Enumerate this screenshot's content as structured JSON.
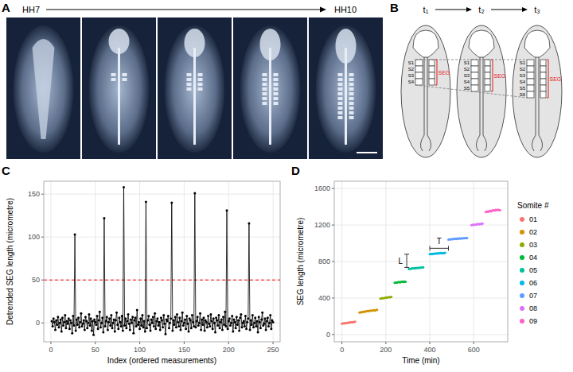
{
  "panel_a": {
    "panel": "A",
    "stages": [
      "HH7",
      "HH10"
    ]
  },
  "panel_b": {
    "panel": "B",
    "times": [
      "t₁",
      "t₂",
      "t₃"
    ],
    "somites": [
      [
        "S1",
        "S2",
        "S3",
        "S4"
      ],
      [
        "S1",
        "S2",
        "S3",
        "S4",
        "S5"
      ],
      [
        "S1",
        "S2",
        "S3",
        "S4",
        "S5",
        "S6"
      ]
    ],
    "segment_label": "SEG"
  },
  "chart_data": [
    {
      "panel": "C",
      "type": "line",
      "marker": "circle",
      "color": "#000000",
      "grid": true,
      "x_label": "Index (ordered measurements)",
      "y_label": "Detrended SEG length (micrometre)",
      "xlim": [
        -8,
        258
      ],
      "xticks": [
        0,
        50,
        100,
        150,
        200,
        250
      ],
      "ylim": [
        -22,
        165
      ],
      "yticks": [
        0,
        50,
        100,
        150
      ],
      "reference_line": {
        "value": 50,
        "color": "#ff0000",
        "line_style": "dashed"
      },
      "x": [
        1,
        2,
        3,
        4,
        5,
        6,
        7,
        8,
        9,
        10,
        11,
        12,
        13,
        14,
        15,
        16,
        17,
        18,
        19,
        20,
        21,
        22,
        23,
        24,
        25,
        26,
        27,
        28,
        29,
        30,
        31,
        32,
        33,
        34,
        35,
        36,
        37,
        38,
        39,
        40,
        41,
        42,
        43,
        44,
        45,
        46,
        47,
        48,
        49,
        50,
        51,
        52,
        53,
        54,
        55,
        56,
        57,
        58,
        59,
        60,
        61,
        62,
        63,
        64,
        65,
        66,
        67,
        68,
        69,
        70,
        71,
        72,
        73,
        74,
        75,
        76,
        77,
        78,
        79,
        80,
        81,
        82,
        83,
        84,
        85,
        86,
        87,
        88,
        89,
        90,
        91,
        92,
        93,
        94,
        95,
        96,
        97,
        98,
        99,
        100,
        101,
        102,
        103,
        104,
        105,
        106,
        107,
        108,
        109,
        110,
        111,
        112,
        113,
        114,
        115,
        116,
        117,
        118,
        119,
        120,
        121,
        122,
        123,
        124,
        125,
        126,
        127,
        128,
        129,
        130,
        131,
        132,
        133,
        134,
        135,
        136,
        137,
        138,
        139,
        140,
        141,
        142,
        143,
        144,
        145,
        146,
        147,
        148,
        149,
        150,
        151,
        152,
        153,
        154,
        155,
        156,
        157,
        158,
        159,
        160,
        161,
        162,
        163,
        164,
        165,
        166,
        167,
        168,
        169,
        170,
        171,
        172,
        173,
        174,
        175,
        176,
        177,
        178,
        179,
        180,
        181,
        182,
        183,
        184,
        185,
        186,
        187,
        188,
        189,
        190,
        191,
        192,
        193,
        194,
        195,
        196,
        197,
        198,
        199,
        200,
        201,
        202,
        203,
        204,
        205,
        206,
        207,
        208,
        209,
        210,
        211,
        212,
        213,
        214,
        215,
        216,
        217,
        218,
        219,
        220,
        221,
        222,
        223,
        224,
        225,
        226,
        227,
        228,
        229,
        230,
        231,
        232,
        233,
        234,
        235,
        236,
        237,
        238,
        239,
        240,
        241,
        242,
        243,
        244,
        245,
        246,
        247,
        248,
        249,
        250
      ],
      "values": [
        2,
        -4,
        5,
        1,
        -8,
        3,
        -2,
        7,
        -5,
        0,
        4,
        -10,
        6,
        -3,
        1,
        9,
        -6,
        2,
        -1,
        5,
        -7,
        3,
        0,
        -12,
        8,
        -3,
        103,
        -9,
        4,
        -2,
        6,
        -5,
        1,
        11,
        -4,
        -1,
        3,
        -8,
        7,
        2,
        -6,
        0,
        10,
        -3,
        5,
        -9,
        2,
        -14,
        4,
        1,
        -2,
        8,
        -7,
        3,
        13,
        -5,
        0,
        6,
        -11,
        122,
        -4,
        2,
        7,
        -8,
        1,
        5,
        -3,
        9,
        -6,
        0,
        4,
        -10,
        3,
        12,
        -2,
        -7,
        6,
        1,
        -4,
        8,
        -9,
        158,
        -3,
        5,
        -6,
        2,
        10,
        -1,
        -8,
        4,
        0,
        7,
        -12,
        3,
        6,
        -4,
        15,
        -2,
        1,
        -7,
        5,
        -3,
        9,
        -5,
        2,
        -10,
        141,
        -6,
        3,
        8,
        -2,
        -9,
        4,
        0,
        7,
        -4,
        11,
        -7,
        2,
        5,
        -3,
        1,
        -8,
        6,
        3,
        -5,
        9,
        -1,
        -13,
        4,
        2,
        8,
        -6,
        0,
        5,
        140,
        -9,
        3,
        -2,
        7,
        -5,
        10,
        1,
        -4,
        6,
        -8,
        2,
        12,
        -3,
        0,
        4,
        -7,
        8,
        -1,
        -10,
        5,
        3,
        -6,
        9,
        1,
        -4,
        151,
        -5,
        2,
        7,
        -3,
        0,
        11,
        -8,
        4,
        -2,
        6,
        -9,
        3,
        1,
        -5,
        8,
        -1,
        -4,
        10,
        2,
        -7,
        5,
        0,
        -11,
        6,
        3,
        -3,
        9,
        -6,
        1,
        4,
        -8,
        7,
        -2,
        13,
        -4,
        131,
        -7,
        2,
        5,
        -3,
        0,
        8,
        -10,
        4,
        1,
        -6,
        7,
        -2,
        3,
        -9,
        6,
        10,
        -5,
        0,
        2,
        -4,
        8,
        -7,
        1,
        5,
        116,
        -8,
        3,
        -2,
        9,
        -5,
        0,
        6,
        -4,
        2,
        -11,
        7,
        1,
        -6,
        4,
        12,
        -3,
        -1,
        5,
        -8,
        2,
        6,
        -4,
        0,
        9,
        -7,
        3,
        1
      ]
    },
    {
      "panel": "D",
      "type": "line",
      "marker": "circle",
      "grid": true,
      "legend": "right",
      "legend_title": "Somite #",
      "x_label": "Time (min)",
      "y_label": "SEG length (micrometre)",
      "xlim": [
        -35,
        755
      ],
      "xticks": [
        0,
        200,
        400,
        600
      ],
      "ylim": [
        -80,
        1680
      ],
      "yticks": [
        0,
        400,
        800,
        1200,
        1600
      ],
      "series": [
        {
          "name": "01",
          "color": "#F8766D",
          "x": [
            0,
            5,
            10,
            15,
            20,
            25,
            30,
            35,
            40,
            45,
            50,
            55,
            60
          ],
          "values": [
            118,
            122,
            121,
            126,
            124,
            128,
            131,
            129,
            133,
            135,
            134,
            138,
            140
          ]
        },
        {
          "name": "02",
          "color": "#D39200",
          "x": [
            80,
            85,
            90,
            95,
            100,
            105,
            110,
            115,
            120,
            125,
            130,
            135,
            140,
            145,
            150,
            155,
            160
          ],
          "values": [
            240,
            245,
            243,
            248,
            252,
            250,
            255,
            258,
            256,
            260,
            262,
            259,
            264,
            266,
            263,
            268,
            270
          ]
        },
        {
          "name": "03",
          "color": "#93AA00",
          "x": [
            175,
            180,
            185,
            190,
            195,
            200,
            205,
            210,
            215,
            220,
            225
          ],
          "values": [
            392,
            396,
            399,
            397,
            402,
            405,
            403,
            407,
            410,
            408,
            412
          ]
        },
        {
          "name": "04",
          "color": "#00BA38",
          "x": [
            240,
            245,
            250,
            255,
            260,
            265,
            270,
            275,
            280,
            285,
            290
          ],
          "values": [
            566,
            570,
            568,
            573,
            575,
            572,
            577,
            579,
            576,
            580,
            578
          ]
        },
        {
          "name": "05",
          "color": "#00C19F",
          "x": [
            305,
            310,
            315,
            320,
            325,
            330,
            335,
            340,
            345,
            350,
            355,
            360,
            365,
            370
          ],
          "values": [
            718,
            722,
            720,
            725,
            727,
            724,
            729,
            731,
            728,
            733,
            730,
            735,
            732,
            736
          ]
        },
        {
          "name": "06",
          "color": "#00B9E3",
          "x": [
            400,
            405,
            410,
            415,
            420,
            425,
            430,
            435,
            440,
            445,
            450,
            455,
            460,
            465,
            470
          ],
          "values": [
            880,
            883,
            881,
            886,
            884,
            888,
            890,
            887,
            891,
            889,
            893,
            890,
            894,
            892,
            895
          ]
        },
        {
          "name": "07",
          "color": "#619CFF",
          "x": [
            485,
            490,
            495,
            500,
            505,
            510,
            515,
            520,
            525,
            530,
            535,
            540,
            545,
            550,
            555,
            560,
            565,
            570
          ],
          "values": [
            1040,
            1043,
            1041,
            1046,
            1044,
            1048,
            1050,
            1047,
            1052,
            1049,
            1054,
            1051,
            1055,
            1053,
            1057,
            1054,
            1058,
            1056
          ]
        },
        {
          "name": "08",
          "color": "#DB72FB",
          "x": [
            590,
            595,
            600,
            605,
            610,
            615,
            620,
            625,
            630,
            635,
            640
          ],
          "values": [
            1198,
            1203,
            1201,
            1206,
            1204,
            1209,
            1211,
            1208,
            1213,
            1210,
            1215
          ]
        },
        {
          "name": "09",
          "color": "#FF61C3",
          "x": [
            655,
            660,
            665,
            670,
            675,
            680,
            685,
            690,
            695,
            700,
            705,
            710,
            715,
            720
          ],
          "values": [
            1342,
            1348,
            1345,
            1352,
            1356,
            1350,
            1360,
            1363,
            1358,
            1366,
            1362,
            1368,
            1365,
            1361
          ]
        }
      ],
      "annotations": [
        {
          "text": "L",
          "x": [
            295,
            295
          ],
          "y": [
            735,
            880
          ]
        },
        {
          "text": "T",
          "x": [
            400,
            485
          ],
          "y": [
            945,
            945
          ]
        }
      ]
    }
  ]
}
